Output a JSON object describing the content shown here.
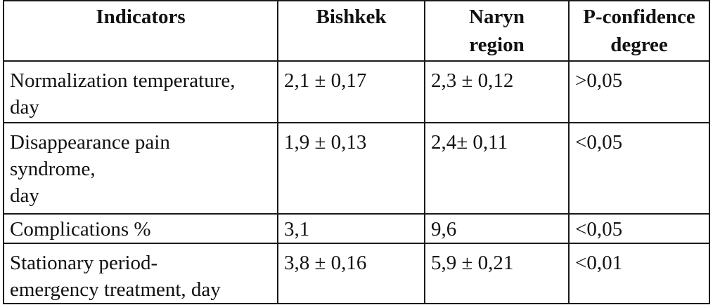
{
  "table": {
    "headers": [
      "Indicators",
      "Bishkek",
      "Naryn\nregion",
      "P-confidence\ndegree"
    ],
    "rows": [
      [
        "Normalization temperature,\nday",
        "2,1 ± 0,17",
        "2,3 ± 0,12",
        ">0,05"
      ],
      [
        "Disappearance pain\nsyndrome,\nday",
        "1,9 ± 0,13",
        "2,4± 0,11",
        "<0,05"
      ],
      [
        "Complications %",
        "3,1",
        "9,6",
        "<0,05"
      ],
      [
        "Stationary period-\nemergency treatment, day",
        "3,8 ± 0,16",
        "5,9 ± 0,21",
        "<0,01"
      ]
    ]
  }
}
